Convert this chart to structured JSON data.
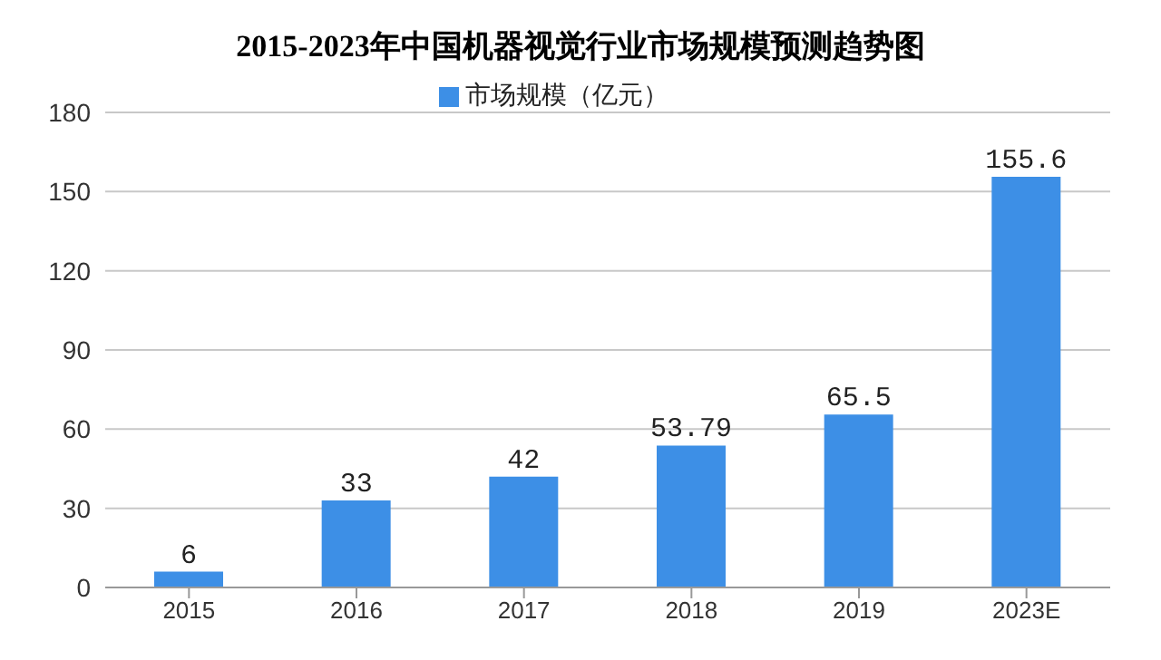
{
  "chart_data": {
    "type": "bar",
    "title": "2015-2023年中国机器视觉行业市场规模预测趋势图",
    "categories": [
      "2015",
      "2016",
      "2017",
      "2018",
      "2019",
      "2023E"
    ],
    "series": [
      {
        "name": "市场规模（亿元）",
        "color": "#3d8fe6",
        "values": [
          6,
          33,
          42,
          53.79,
          65.5,
          155.6
        ]
      }
    ],
    "ylim": [
      0,
      180
    ],
    "yticks": [
      0,
      30,
      60,
      90,
      120,
      150,
      180
    ],
    "grid": "y",
    "legend": "top",
    "data_labels": true
  }
}
